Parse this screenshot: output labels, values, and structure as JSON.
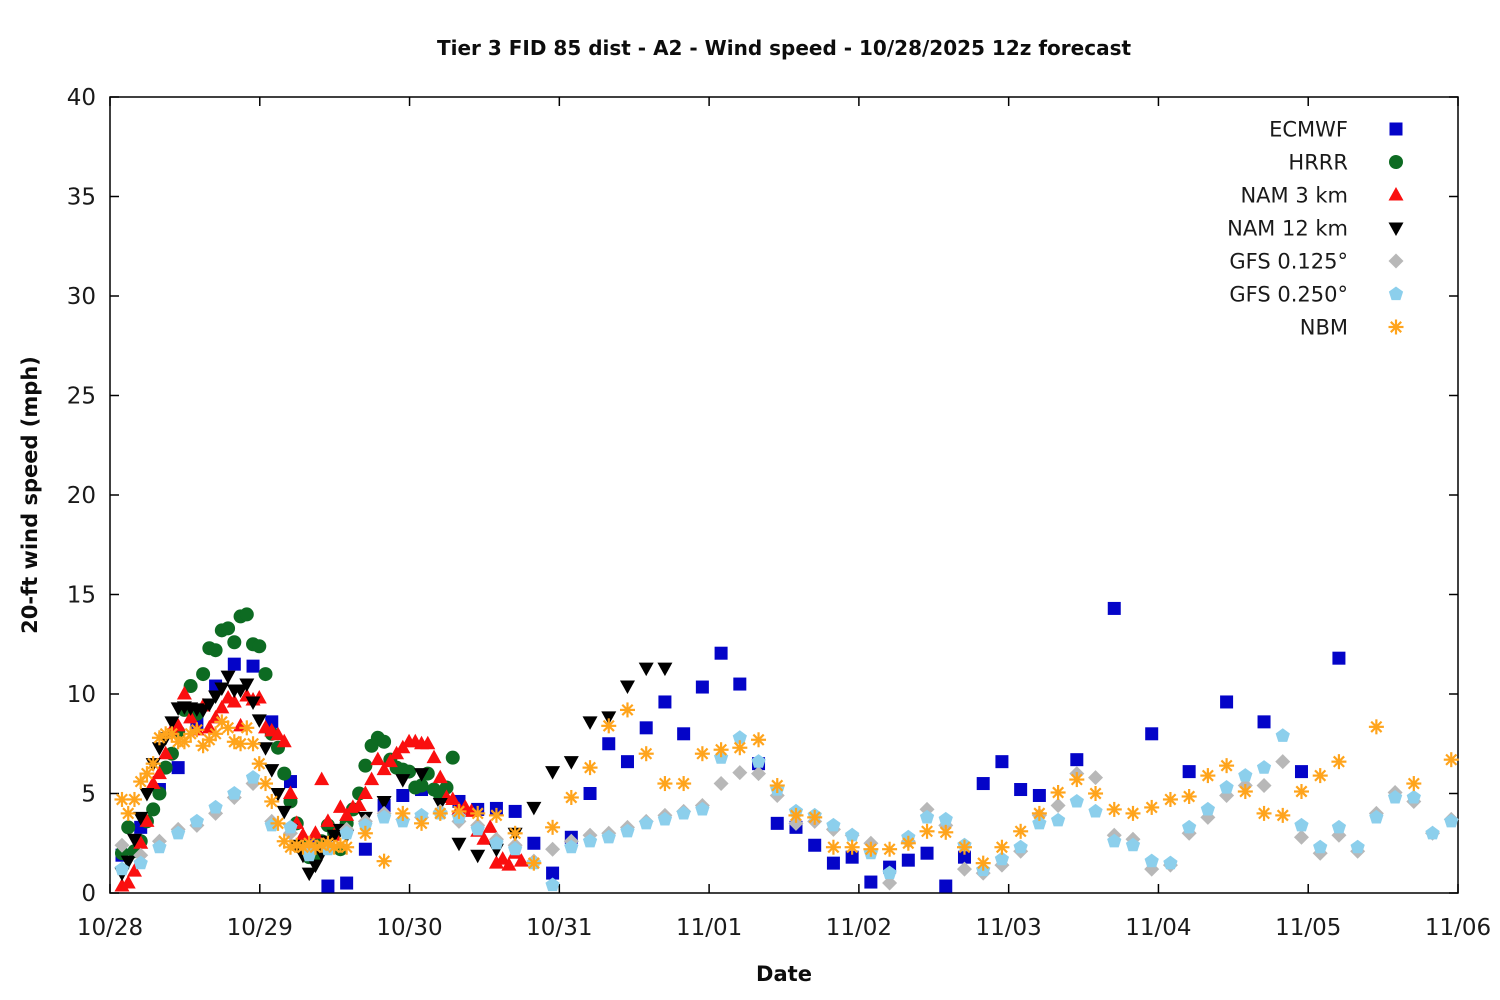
{
  "chart_data": {
    "type": "scatter",
    "title": "Tier 3 FID 85 dist - A2 - Wind speed - 10/28/2025 12z forecast",
    "xlabel": "Date",
    "ylabel": "20-ft wind speed (mph)",
    "xlim": [
      0,
      9
    ],
    "ylim": [
      0,
      40
    ],
    "yticks": [
      0,
      5,
      10,
      15,
      20,
      25,
      30,
      35,
      40
    ],
    "xtick_labels": [
      "10/28",
      "10/29",
      "10/30",
      "10/31",
      "11/01",
      "11/02",
      "11/03",
      "11/04",
      "11/05",
      "11/06"
    ],
    "grid": false,
    "legend_position": "top-right",
    "x_unit": "days since 10/28 00:00",
    "series": [
      {
        "name": "ECMWF",
        "marker": "square",
        "color": "#0404c8",
        "segments": [
          {
            "t0": 0.08,
            "dt": 0.125,
            "v": [
              1.9,
              3.3,
              5.2,
              6.3,
              8.5,
              10.4,
              11.5,
              11.4,
              8.6,
              5.6,
              2.4,
              0.35,
              0.5,
              2.2,
              4.4,
              4.9,
              5.2,
              5.0,
              4.6,
              4.2,
              4.25,
              4.1,
              2.5,
              1.0,
              2.8,
              5.0,
              7.5,
              6.6,
              8.3,
              9.6,
              8.0,
              10.35,
              12.05,
              10.5,
              6.5,
              3.5,
              3.3,
              2.4,
              1.5,
              1.8,
              0.55,
              1.3,
              1.65,
              2.0,
              0.35,
              1.8,
              5.5,
              6.6,
              5.2,
              4.9
            ]
          },
          {
            "t0": 6.455,
            "dt": 0.25,
            "v": [
              6.7,
              14.3,
              8.0,
              6.1,
              9.6,
              8.6,
              6.1,
              11.8
            ]
          }
        ]
      },
      {
        "name": "HRRR",
        "marker": "circle",
        "color": "#0d6b22",
        "segments": [
          {
            "t0": 0.08,
            "dt": 0.041667,
            "v": [
              2.0,
              3.3,
              2.1,
              2.6,
              3.6,
              4.2,
              5.0,
              6.3,
              7.0,
              8.1,
              9.2,
              10.4,
              9.0,
              11.0,
              12.3,
              12.2,
              13.2,
              13.3,
              12.6,
              13.9,
              14.0,
              12.5,
              12.4,
              11.0,
              8.0,
              7.3,
              6.0,
              4.6,
              3.5,
              2.5,
              1.8,
              1.9,
              2.6,
              3.4,
              3.0,
              2.2,
              3.5,
              4.2,
              5.0,
              6.4,
              7.4,
              7.8,
              7.6,
              6.7,
              6.3,
              6.2,
              6.1,
              5.3,
              5.4,
              6.0,
              5.2,
              4.9,
              5.3,
              6.8
            ]
          }
        ]
      },
      {
        "name": "NAM 3 km",
        "marker": "triangle-up",
        "color": "#fa0f0f",
        "segments": [
          {
            "t0": 0.08,
            "dt": 0.041667,
            "v": [
              0.35,
              0.5,
              1.1,
              2.5,
              3.6,
              5.5,
              6.0,
              7.0,
              8.2,
              8.4,
              10.0,
              8.8,
              8.2,
              9.4,
              8.3,
              8.8,
              9.3,
              9.8,
              9.6,
              8.4,
              9.9,
              9.7,
              9.8,
              8.3,
              8.15,
              7.95,
              7.6,
              5.0,
              3.5,
              2.9,
              2.2,
              3.0,
              5.7,
              3.6,
              2.9,
              4.3,
              3.9,
              4.3,
              4.4,
              5.0,
              5.7,
              6.7,
              6.2,
              6.6,
              7.0,
              7.3,
              7.6,
              7.6,
              7.5,
              7.5,
              6.8,
              5.8,
              4.8,
              4.7,
              4.2,
              4.3,
              4.1,
              3.1,
              2.7,
              3.3,
              1.5,
              1.7,
              1.4,
              2.0,
              1.6
            ]
          }
        ]
      },
      {
        "name": "NAM 12 km",
        "marker": "triangle-down",
        "color": "#000000",
        "segments": [
          {
            "t0": 0.08,
            "dt": 0.041667,
            "v": [
              1.0,
              1.6,
              2.7,
              3.8,
              5.0,
              6.5,
              7.3,
              7.8,
              8.6,
              9.3,
              9.35,
              9.3,
              9.25,
              9.2,
              9.5,
              9.9,
              10.3,
              10.9,
              10.2,
              10.2,
              10.5,
              9.6,
              8.7,
              7.3,
              6.2,
              5.0,
              4.1,
              3.2,
              2.4,
              1.9,
              1.0,
              1.4,
              2.0,
              2.6,
              2.9,
              3.2,
              2.9
            ]
          },
          {
            "t0": 1.705,
            "dt": 0.125,
            "v": [
              3.8,
              4.6,
              5.7,
              6.0,
              4.5,
              2.5,
              1.9,
              2.2,
              3.0,
              4.3,
              6.1,
              6.6,
              8.6,
              8.85,
              10.4,
              11.3,
              11.3
            ]
          }
        ]
      },
      {
        "name": "GFS 0.125°",
        "marker": "diamond",
        "color": "#b8b8b8",
        "segments": [
          {
            "t0": 0.08,
            "dt": 0.125,
            "v": [
              2.4,
              1.9,
              2.6,
              3.2,
              3.4,
              4.0,
              4.8,
              5.5,
              3.6,
              3.0,
              2.1,
              2.4,
              3.2,
              3.6,
              4.0,
              3.7,
              3.8,
              4.1,
              3.6,
              3.4,
              2.7,
              2.4,
              1.6,
              2.2,
              2.6,
              2.9,
              3.0,
              3.3,
              3.6,
              3.9,
              4.1,
              4.4,
              5.5,
              6.05,
              6.0,
              4.9,
              3.5,
              3.6,
              3.2,
              2.9,
              2.5,
              0.5,
              2.6,
              4.2,
              3.4,
              1.2,
              1.0,
              1.4,
              2.1,
              3.9,
              4.4,
              6.0,
              5.8,
              2.9,
              2.7,
              1.2,
              1.4,
              3.0,
              3.8,
              4.9,
              5.4,
              5.4,
              6.6,
              2.8,
              2.0,
              2.9,
              2.1,
              4.0,
              5.05,
              4.6,
              3.0,
              3.7
            ]
          }
        ]
      },
      {
        "name": "GFS 0.250°",
        "marker": "pentagon",
        "color": "#8ccfec",
        "segments": [
          {
            "t0": 0.08,
            "dt": 0.125,
            "v": [
              1.2,
              1.5,
              2.3,
              3.0,
              3.6,
              4.3,
              5.0,
              5.8,
              3.4,
              3.3,
              1.9,
              2.2,
              3.0,
              3.4,
              3.8,
              3.6,
              3.9,
              4.0,
              3.8,
              3.2,
              2.5,
              2.2,
              1.5,
              0.4,
              2.3,
              2.6,
              2.8,
              3.1,
              3.5,
              3.7,
              4.0,
              4.2,
              6.8,
              7.8,
              6.6,
              5.2,
              4.1,
              3.9,
              3.4,
              2.9,
              2.0,
              1.0,
              2.8,
              3.8,
              3.7,
              2.4,
              1.15,
              1.7,
              2.3,
              3.5,
              3.65,
              4.6,
              4.1,
              2.6,
              2.4,
              1.6,
              1.5,
              3.3,
              4.2,
              5.3,
              5.9,
              6.3,
              7.9,
              3.4,
              2.3,
              3.3,
              2.3,
              3.8,
              4.8,
              4.8,
              3.0,
              3.6
            ]
          }
        ]
      },
      {
        "name": "NBM",
        "marker": "asterisk",
        "color": "#ffa41c",
        "segments": [
          {
            "t0": 0.08,
            "dt": 0.041667,
            "v": [
              4.7,
              4.0,
              4.7,
              5.6,
              6.0,
              6.5,
              7.8,
              8.0,
              8.0,
              7.6,
              7.6,
              8.0,
              8.2,
              7.4,
              7.7,
              8.0,
              8.6,
              8.3,
              7.6,
              7.5,
              8.3,
              7.5,
              6.5,
              5.5,
              4.6,
              3.5,
              2.6,
              2.3,
              2.4,
              2.3,
              2.5,
              2.3,
              2.4,
              2.5,
              2.3,
              2.4,
              2.3
            ]
          },
          {
            "t0": 1.705,
            "dt": 0.125,
            "v": [
              3.0,
              1.6,
              4.0,
              3.5,
              4.0,
              4.1,
              4.0,
              3.9,
              3.0,
              1.5,
              3.3,
              4.8,
              6.3,
              8.4,
              9.2,
              7.0,
              5.5,
              5.5,
              7.0,
              7.2,
              7.3,
              7.7,
              5.4,
              3.9,
              3.8,
              2.3,
              2.3,
              2.2,
              2.2,
              2.5,
              3.1,
              3.05,
              2.3,
              1.5,
              2.3,
              3.1,
              4.0,
              5.05,
              5.7,
              5.0,
              4.2,
              4.0,
              4.3,
              4.7,
              4.85,
              5.9,
              6.4,
              5.1,
              4.0,
              3.9,
              5.1,
              5.9,
              6.6
            ]
          },
          {
            "t0": 8.455,
            "dt": 0.25,
            "v": [
              8.35,
              5.5,
              6.7
            ]
          }
        ]
      }
    ]
  }
}
